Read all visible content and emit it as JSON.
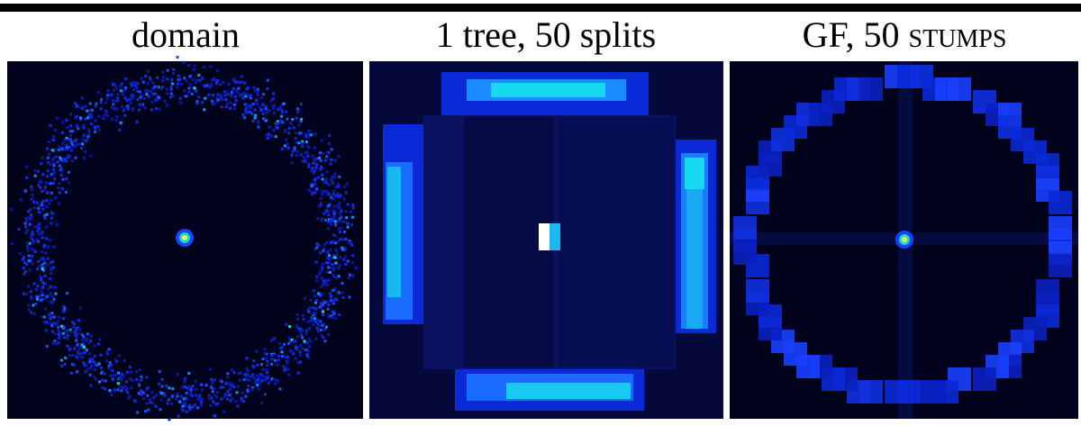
{
  "panels": [
    {
      "title": "domain"
    },
    {
      "title": "1 tree, 50 splits"
    },
    {
      "title": "GF, 50 stumps"
    }
  ]
}
